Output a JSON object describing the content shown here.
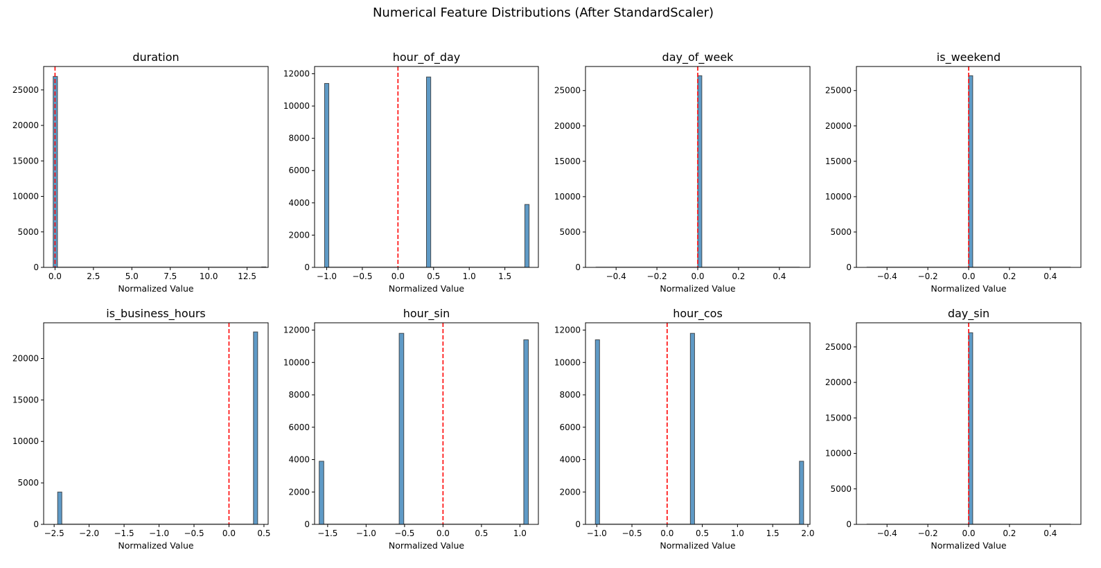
{
  "chart_data": {
    "title": "Numerical Feature Distributions (After StandardScaler)",
    "type": "bar",
    "colors": {
      "bar_fill": "#5f9ac6",
      "bar_edge": "#2b2b2b",
      "mean_line": "#ff0000"
    },
    "subplots": [
      {
        "title": "duration",
        "xlabel": "Normalized Value",
        "xlim": [
          -0.74,
          13.87
        ],
        "ylim": [
          0,
          28300
        ],
        "xticks": [
          0,
          2.5,
          5,
          7.5,
          10,
          12.5
        ],
        "xtick_labels": [
          "0.0",
          "2.5",
          "5.0",
          "7.5",
          "10.0",
          "12.5"
        ],
        "yticks": [
          0,
          5000,
          10000,
          15000,
          20000,
          25000
        ],
        "hist_range": [
          -0.12,
          13.73
        ],
        "bins": [
          {
            "x0": -0.12,
            "x1": 0.16,
            "count": 26900
          },
          {
            "x0": 13.45,
            "x1": 13.73,
            "count": 60
          }
        ],
        "ref_line": 0
      },
      {
        "title": "hour_of_day",
        "xlabel": "Normalized Value",
        "xlim": [
          -1.17,
          1.97
        ],
        "ylim": [
          0,
          12450
        ],
        "xticks": [
          -1,
          -0.5,
          0,
          0.5,
          1,
          1.5
        ],
        "xtick_labels": [
          "−1.0",
          "−0.5",
          "0.0",
          "0.5",
          "1.0",
          "1.5"
        ],
        "yticks": [
          0,
          2000,
          4000,
          6000,
          8000,
          10000,
          12000
        ],
        "hist_range": [
          -1.03,
          1.84
        ],
        "bins": [
          {
            "x0": -1.03,
            "x1": -0.97,
            "count": 11400
          },
          {
            "x0": 0.4,
            "x1": 0.46,
            "count": 11800
          },
          {
            "x0": 1.78,
            "x1": 1.84,
            "count": 3900
          }
        ],
        "ref_line": 0
      },
      {
        "title": "day_of_week",
        "xlabel": "Normalized Value",
        "xlim": [
          -0.55,
          0.55
        ],
        "ylim": [
          0,
          28400
        ],
        "xticks": [
          -0.4,
          -0.2,
          0,
          0.2,
          0.4
        ],
        "xtick_labels": [
          "−0.4",
          "−0.2",
          "0.0",
          "0.2",
          "0.4"
        ],
        "yticks": [
          0,
          5000,
          10000,
          15000,
          20000,
          25000
        ],
        "hist_range": [
          -0.5,
          0.5
        ],
        "bins": [
          {
            "x0": 0,
            "x1": 0.02,
            "count": 27100
          }
        ],
        "ref_line": 0
      },
      {
        "title": "is_weekend",
        "xlabel": "Normalized Value",
        "xlim": [
          -0.55,
          0.55
        ],
        "ylim": [
          0,
          28400
        ],
        "xticks": [
          -0.4,
          -0.2,
          0,
          0.2,
          0.4
        ],
        "xtick_labels": [
          "−0.4",
          "−0.2",
          "0.0",
          "0.2",
          "0.4"
        ],
        "yticks": [
          0,
          5000,
          10000,
          15000,
          20000,
          25000
        ],
        "hist_range": [
          -0.5,
          0.5
        ],
        "bins": [
          {
            "x0": 0,
            "x1": 0.02,
            "count": 27100
          }
        ],
        "ref_line": 0
      },
      {
        "title": "is_business_hours",
        "xlabel": "Normalized Value",
        "xlim": [
          -2.65,
          0.56
        ],
        "ylim": [
          0,
          24300
        ],
        "xticks": [
          -2.5,
          -2,
          -1.5,
          -1,
          -0.5,
          0,
          0.5
        ],
        "xtick_labels": [
          "−2.5",
          "−2.0",
          "−1.5",
          "−1.0",
          "−0.5",
          "0.0",
          "0.5"
        ],
        "yticks": [
          0,
          5000,
          10000,
          15000,
          20000
        ],
        "hist_range": [
          -2.45,
          0.41
        ],
        "bins": [
          {
            "x0": -2.45,
            "x1": -2.39,
            "count": 3900
          },
          {
            "x0": 0.35,
            "x1": 0.41,
            "count": 23200
          }
        ],
        "ref_line": 0
      },
      {
        "title": "hour_sin",
        "xlabel": "Normalized Value",
        "xlim": [
          -1.67,
          1.24
        ],
        "ylim": [
          0,
          12450
        ],
        "xticks": [
          -1.5,
          -1,
          -0.5,
          0,
          0.5,
          1
        ],
        "xtick_labels": [
          "−1.5",
          "−1.0",
          "−0.5",
          "0.0",
          "0.5",
          "1.0"
        ],
        "yticks": [
          0,
          2000,
          4000,
          6000,
          8000,
          10000,
          12000
        ],
        "hist_range": [
          -1.61,
          1.11
        ],
        "bins": [
          {
            "x0": -1.61,
            "x1": -1.55,
            "count": 3900
          },
          {
            "x0": -0.57,
            "x1": -0.51,
            "count": 11800
          },
          {
            "x0": 1.05,
            "x1": 1.11,
            "count": 11400
          }
        ],
        "ref_line": 0
      },
      {
        "title": "hour_cos",
        "xlabel": "Normalized Value",
        "xlim": [
          -1.16,
          2.03
        ],
        "ylim": [
          0,
          12450
        ],
        "xticks": [
          -1,
          -0.5,
          0,
          0.5,
          1,
          1.5,
          2
        ],
        "xtick_labels": [
          "−1.0",
          "−0.5",
          "0.0",
          "0.5",
          "1.0",
          "1.5",
          "2.0"
        ],
        "yticks": [
          0,
          2000,
          4000,
          6000,
          8000,
          10000,
          12000
        ],
        "hist_range": [
          -1.02,
          1.94
        ],
        "bins": [
          {
            "x0": -1.02,
            "x1": -0.96,
            "count": 11400
          },
          {
            "x0": 0.33,
            "x1": 0.39,
            "count": 11800
          },
          {
            "x0": 1.88,
            "x1": 1.94,
            "count": 3900
          }
        ],
        "ref_line": 0
      },
      {
        "title": "day_sin",
        "xlabel": "Normalized Value",
        "xlim": [
          -0.55,
          0.55
        ],
        "ylim": [
          0,
          28400
        ],
        "xticks": [
          -0.4,
          -0.2,
          0,
          0.2,
          0.4
        ],
        "xtick_labels": [
          "−0.4",
          "−0.2",
          "0.0",
          "0.2",
          "0.4"
        ],
        "yticks": [
          0,
          5000,
          10000,
          15000,
          20000,
          25000
        ],
        "hist_range": [
          -0.5,
          0.5
        ],
        "bins": [
          {
            "x0": 0,
            "x1": 0.02,
            "count": 27000
          }
        ],
        "ref_line": 0
      }
    ]
  }
}
